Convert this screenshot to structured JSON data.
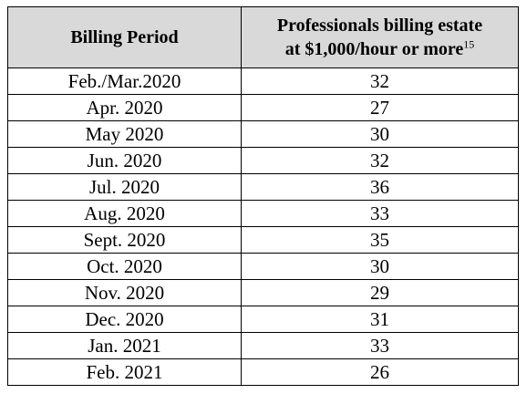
{
  "table": {
    "headers": {
      "period": "Billing Period",
      "count_line1": "Professionals billing estate",
      "count_line2": "at $1,000/hour or more",
      "count_footnote": "15"
    },
    "rows": [
      {
        "period": "Feb./Mar.2020",
        "count": "32"
      },
      {
        "period": "Apr. 2020",
        "count": "27"
      },
      {
        "period": "May 2020",
        "count": "30"
      },
      {
        "period": "Jun. 2020",
        "count": "32"
      },
      {
        "period": "Jul. 2020",
        "count": "36"
      },
      {
        "period": "Aug. 2020",
        "count": "33"
      },
      {
        "period": "Sept. 2020",
        "count": "35"
      },
      {
        "period": "Oct. 2020",
        "count": "30"
      },
      {
        "period": "Nov. 2020",
        "count": "29"
      },
      {
        "period": "Dec. 2020",
        "count": "31"
      },
      {
        "period": "Jan. 2021",
        "count": "33"
      },
      {
        "period": "Feb. 2021",
        "count": "26"
      }
    ]
  }
}
